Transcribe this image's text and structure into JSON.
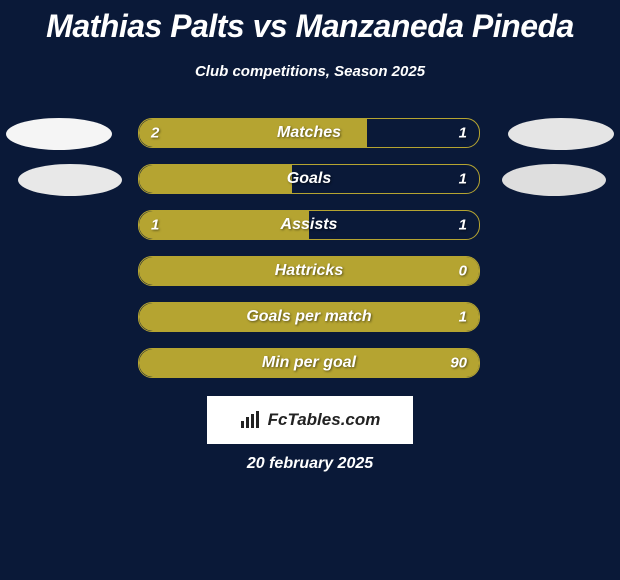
{
  "title": "Mathias Palts vs Manzaneda Pineda",
  "subtitle": "Club competitions, Season 2025",
  "brand": "FcTables.com",
  "date": "20 february 2025",
  "colors": {
    "background": "#0a1938",
    "bar_fill": "#b5a431",
    "bar_border": "#b5a431",
    "text": "#ffffff",
    "brand_bg": "#ffffff",
    "brand_text": "#222222"
  },
  "rows": [
    {
      "label": "Matches",
      "left_value": "2",
      "right_value": "1",
      "left_fill_pct": 67,
      "right_fill_pct": 0
    },
    {
      "label": "Goals",
      "left_value": "",
      "right_value": "1",
      "left_fill_pct": 45,
      "right_fill_pct": 0
    },
    {
      "label": "Assists",
      "left_value": "1",
      "right_value": "1",
      "left_fill_pct": 50,
      "right_fill_pct": 0
    },
    {
      "label": "Hattricks",
      "left_value": "",
      "right_value": "0",
      "left_fill_pct": 100,
      "right_fill_pct": 0
    },
    {
      "label": "Goals per match",
      "left_value": "",
      "right_value": "1",
      "left_fill_pct": 100,
      "right_fill_pct": 0
    },
    {
      "label": "Min per goal",
      "left_value": "",
      "right_value": "90",
      "left_fill_pct": 100,
      "right_fill_pct": 0
    }
  ]
}
